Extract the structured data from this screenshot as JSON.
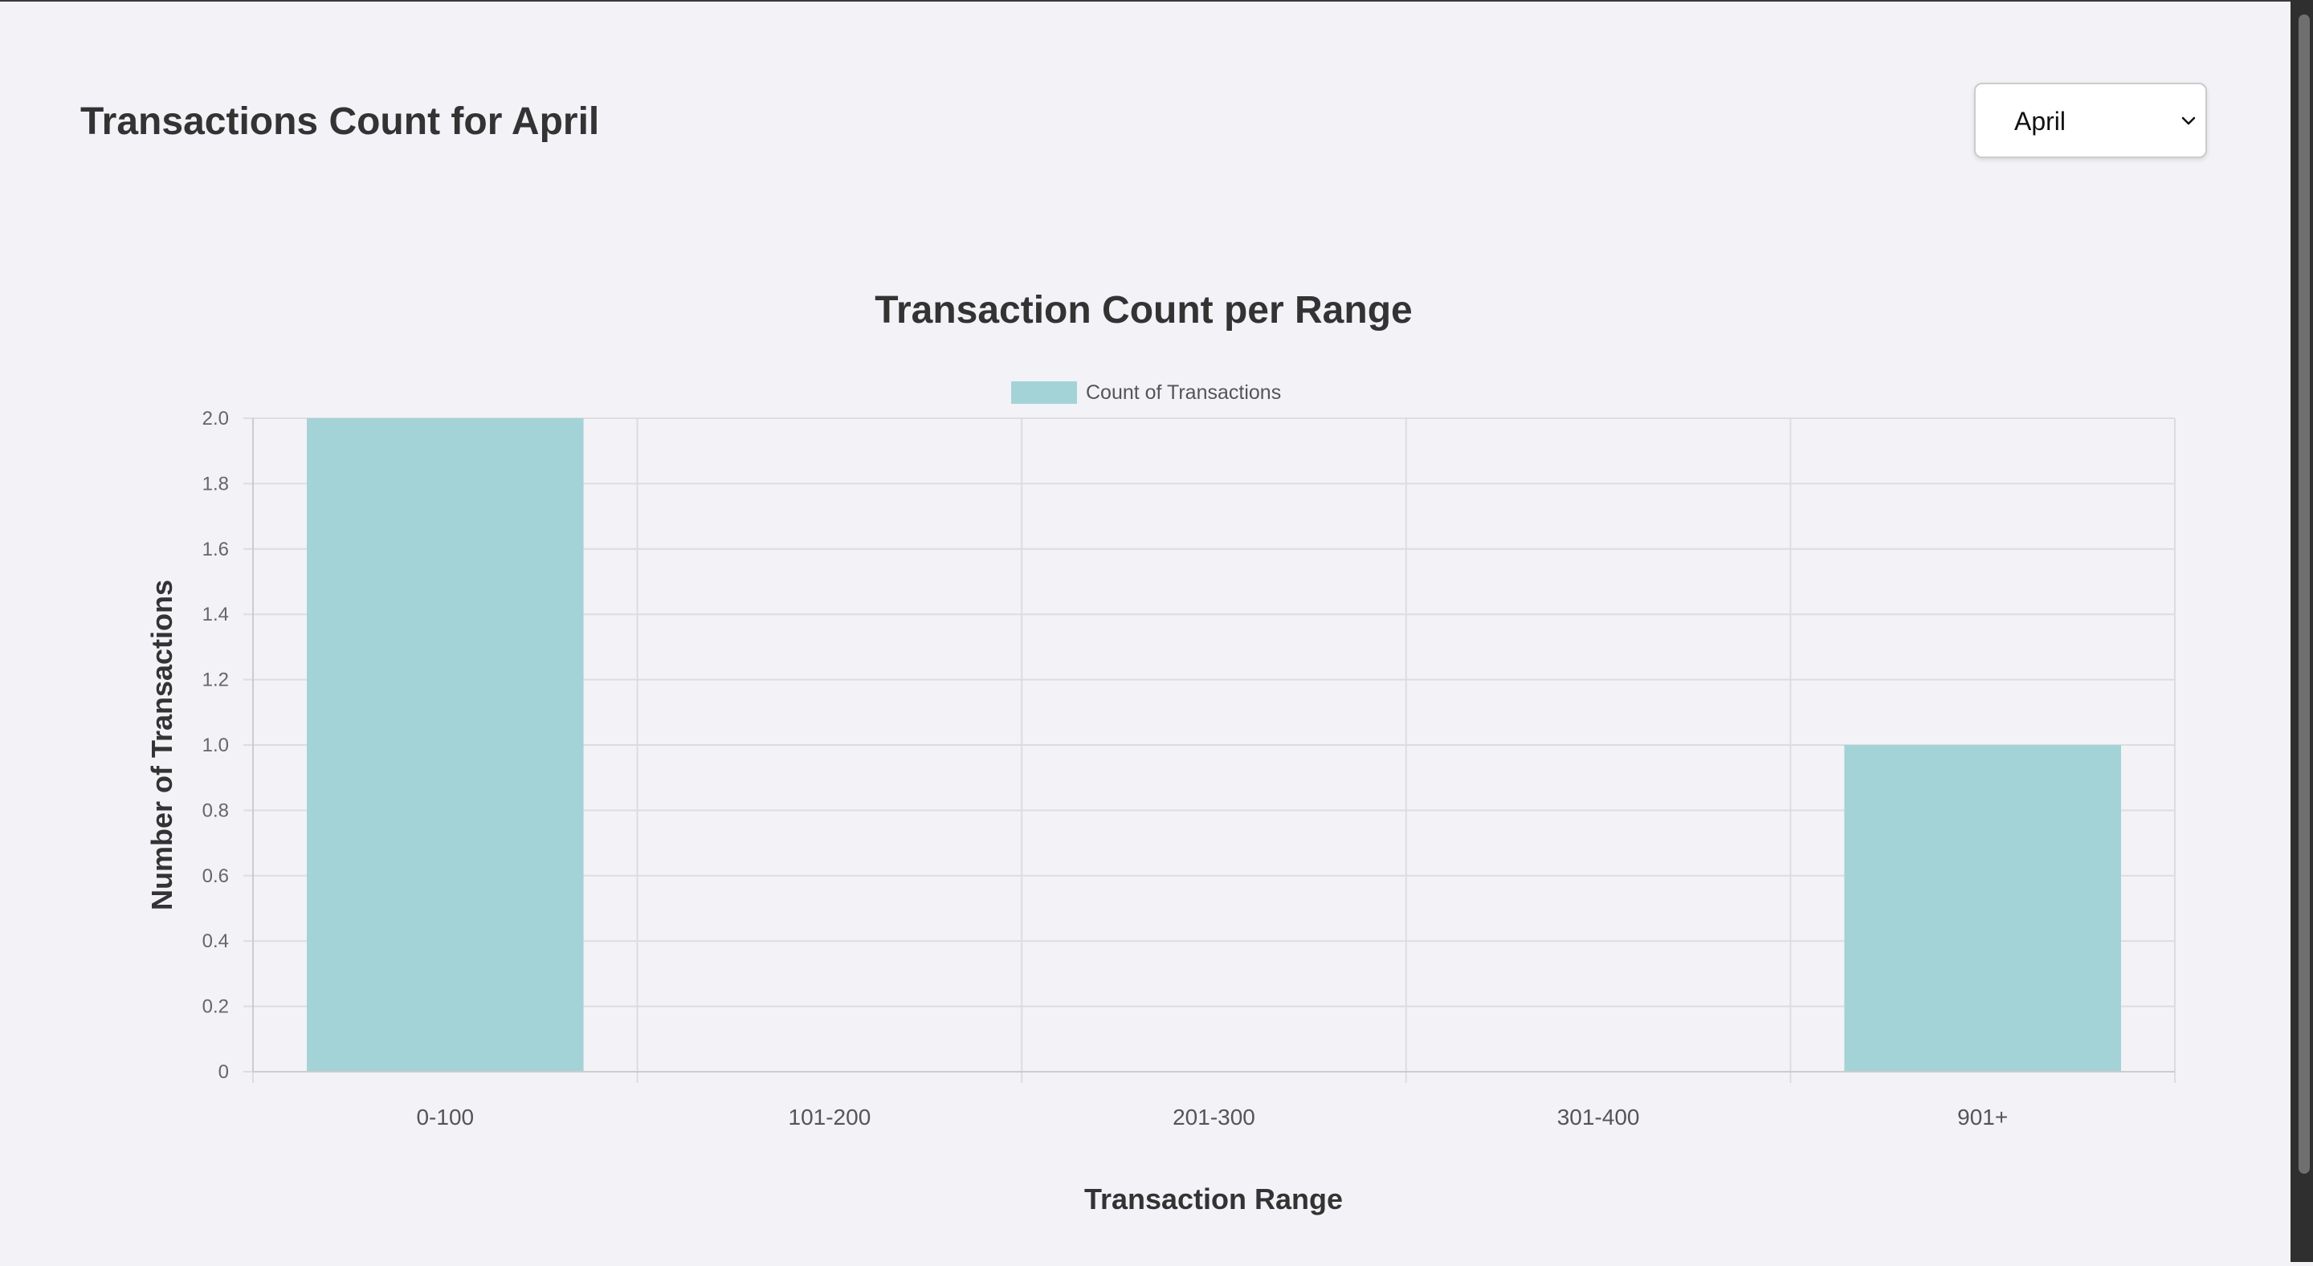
{
  "page": {
    "title": "Transactions Count for April"
  },
  "month_select": {
    "value": "April",
    "options": [
      "April"
    ]
  },
  "icons": {
    "select_arrow": "chevron-down-icon"
  },
  "colors": {
    "background": "#f3f2f7",
    "bar_fill": "#a3d3d7",
    "grid": "#dddddd",
    "text": "#333333"
  },
  "chart_data": {
    "type": "bar",
    "title": "Transaction Count per Range",
    "xlabel": "Transaction Range",
    "ylabel": "Number of Transactions",
    "categories": [
      "0-100",
      "101-200",
      "201-300",
      "301-400",
      "901+"
    ],
    "series": [
      {
        "name": "Count of Transactions",
        "values": [
          2,
          0,
          0,
          0,
          1
        ]
      }
    ],
    "ylim": [
      0,
      2.0
    ],
    "yticks": [
      "0",
      "0.2",
      "0.4",
      "0.6",
      "0.8",
      "1.0",
      "1.2",
      "1.4",
      "1.6",
      "1.8",
      "2.0"
    ],
    "grid": true,
    "legend_position": "top-center"
  }
}
